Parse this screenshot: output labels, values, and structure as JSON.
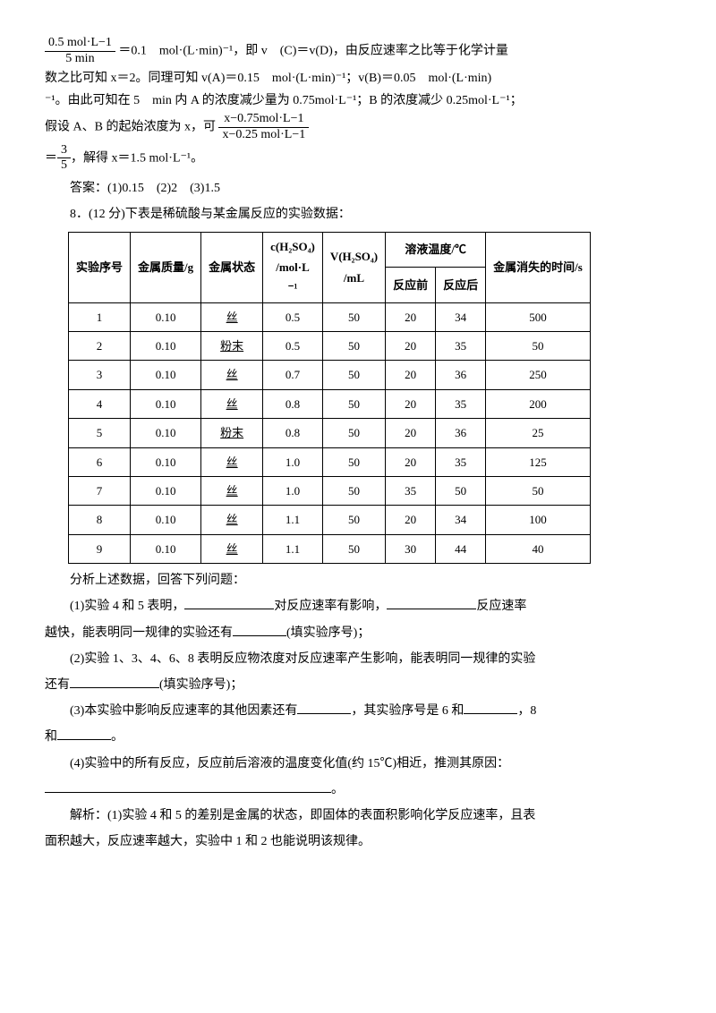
{
  "p1_frac_num": "0.5 mol·L−1",
  "p1_frac_den": "5 min",
  "p1_after": "＝0.1　mol·(L·min)⁻¹，即 v　(C)＝v(D)，由反应速率之比等于化学计量",
  "p2": "数之比可知 x＝2。同理可知 v(A)＝0.15　mol·(L·min)⁻¹；v(B)＝0.05　mol·(L·min)",
  "p3": "⁻¹。由此可知在 5　min 内 A 的浓度减少量为 0.75mol·L⁻¹；B 的浓度减少 0.25mol·L⁻¹；",
  "p4_pre": "假设 A、B 的起始浓度为 x，可",
  "p4_frac_num": "x−0.75mol·L−1",
  "p4_frac_den": "x−0.25 mol·L−1",
  "p5_frac_num": "3",
  "p5_frac_den": "5",
  "p5_after": "，解得 x＝1.5 mol·L⁻¹。",
  "answer": "答案：(1)0.15　(2)2　(3)1.5",
  "q8_intro": "8．(12 分)下表是稀硫酸与某金属反应的实验数据：",
  "table": {
    "headers": {
      "col1": "实验序号",
      "col2": "金属质量/g",
      "col3": "金属状态",
      "col4_l1": "c(H₂SO₄)",
      "col4_l2": "/mol·L",
      "col4_l3": "⁻¹",
      "col5_l1": "V(H₂SO₄)",
      "col5_l2": "/mL",
      "col6": "溶液温度/℃",
      "col6a": "反应前",
      "col6b": "反应后",
      "col7": "金属消失的时间/s"
    },
    "rows": [
      [
        "1",
        "0.10",
        "丝",
        "0.5",
        "50",
        "20",
        "34",
        "500"
      ],
      [
        "2",
        "0.10",
        "粉末",
        "0.5",
        "50",
        "20",
        "35",
        "50"
      ],
      [
        "3",
        "0.10",
        "丝",
        "0.7",
        "50",
        "20",
        "36",
        "250"
      ],
      [
        "4",
        "0.10",
        "丝",
        "0.8",
        "50",
        "20",
        "35",
        "200"
      ],
      [
        "5",
        "0.10",
        "粉末",
        "0.8",
        "50",
        "20",
        "36",
        "25"
      ],
      [
        "6",
        "0.10",
        "丝",
        "1.0",
        "50",
        "20",
        "35",
        "125"
      ],
      [
        "7",
        "0.10",
        "丝",
        "1.0",
        "50",
        "35",
        "50",
        "50"
      ],
      [
        "8",
        "0.10",
        "丝",
        "1.1",
        "50",
        "20",
        "34",
        "100"
      ],
      [
        "9",
        "0.10",
        "丝",
        "1.1",
        "50",
        "30",
        "44",
        "40"
      ]
    ]
  },
  "after_table": "分析上述数据，回答下列问题：",
  "q1_a": "(1)实验 4 和 5 表明，",
  "q1_b": "对反应速率有影响，",
  "q1_c": "反应速率",
  "q1_d": "越快，能表明同一规律的实验还有",
  "q1_e": "(填实验序号)；",
  "q2_a": "(2)实验 1、3、4、6、8 表明反应物浓度对反应速率产生影响，能表明同一规律的实验",
  "q2_b": "还有",
  "q2_c": "(填实验序号)；",
  "q3_a": "(3)本实验中影响反应速率的其他因素还有",
  "q3_b": "，其实验序号是 6 和",
  "q3_c": "，8",
  "q3_d": "和",
  "q3_e": "。",
  "q4_a": "(4)实验中的所有反应，反应前后溶液的温度变化值(约 15℃)相近，推测其原因：",
  "q4_b": "。",
  "explain_a": "解析：(1)实验 4 和 5 的差别是金属的状态，即固体的表面积影响化学反应速率，且表",
  "explain_b": "面积越大，反应速率越大，实验中 1 和 2 也能说明该规律。"
}
